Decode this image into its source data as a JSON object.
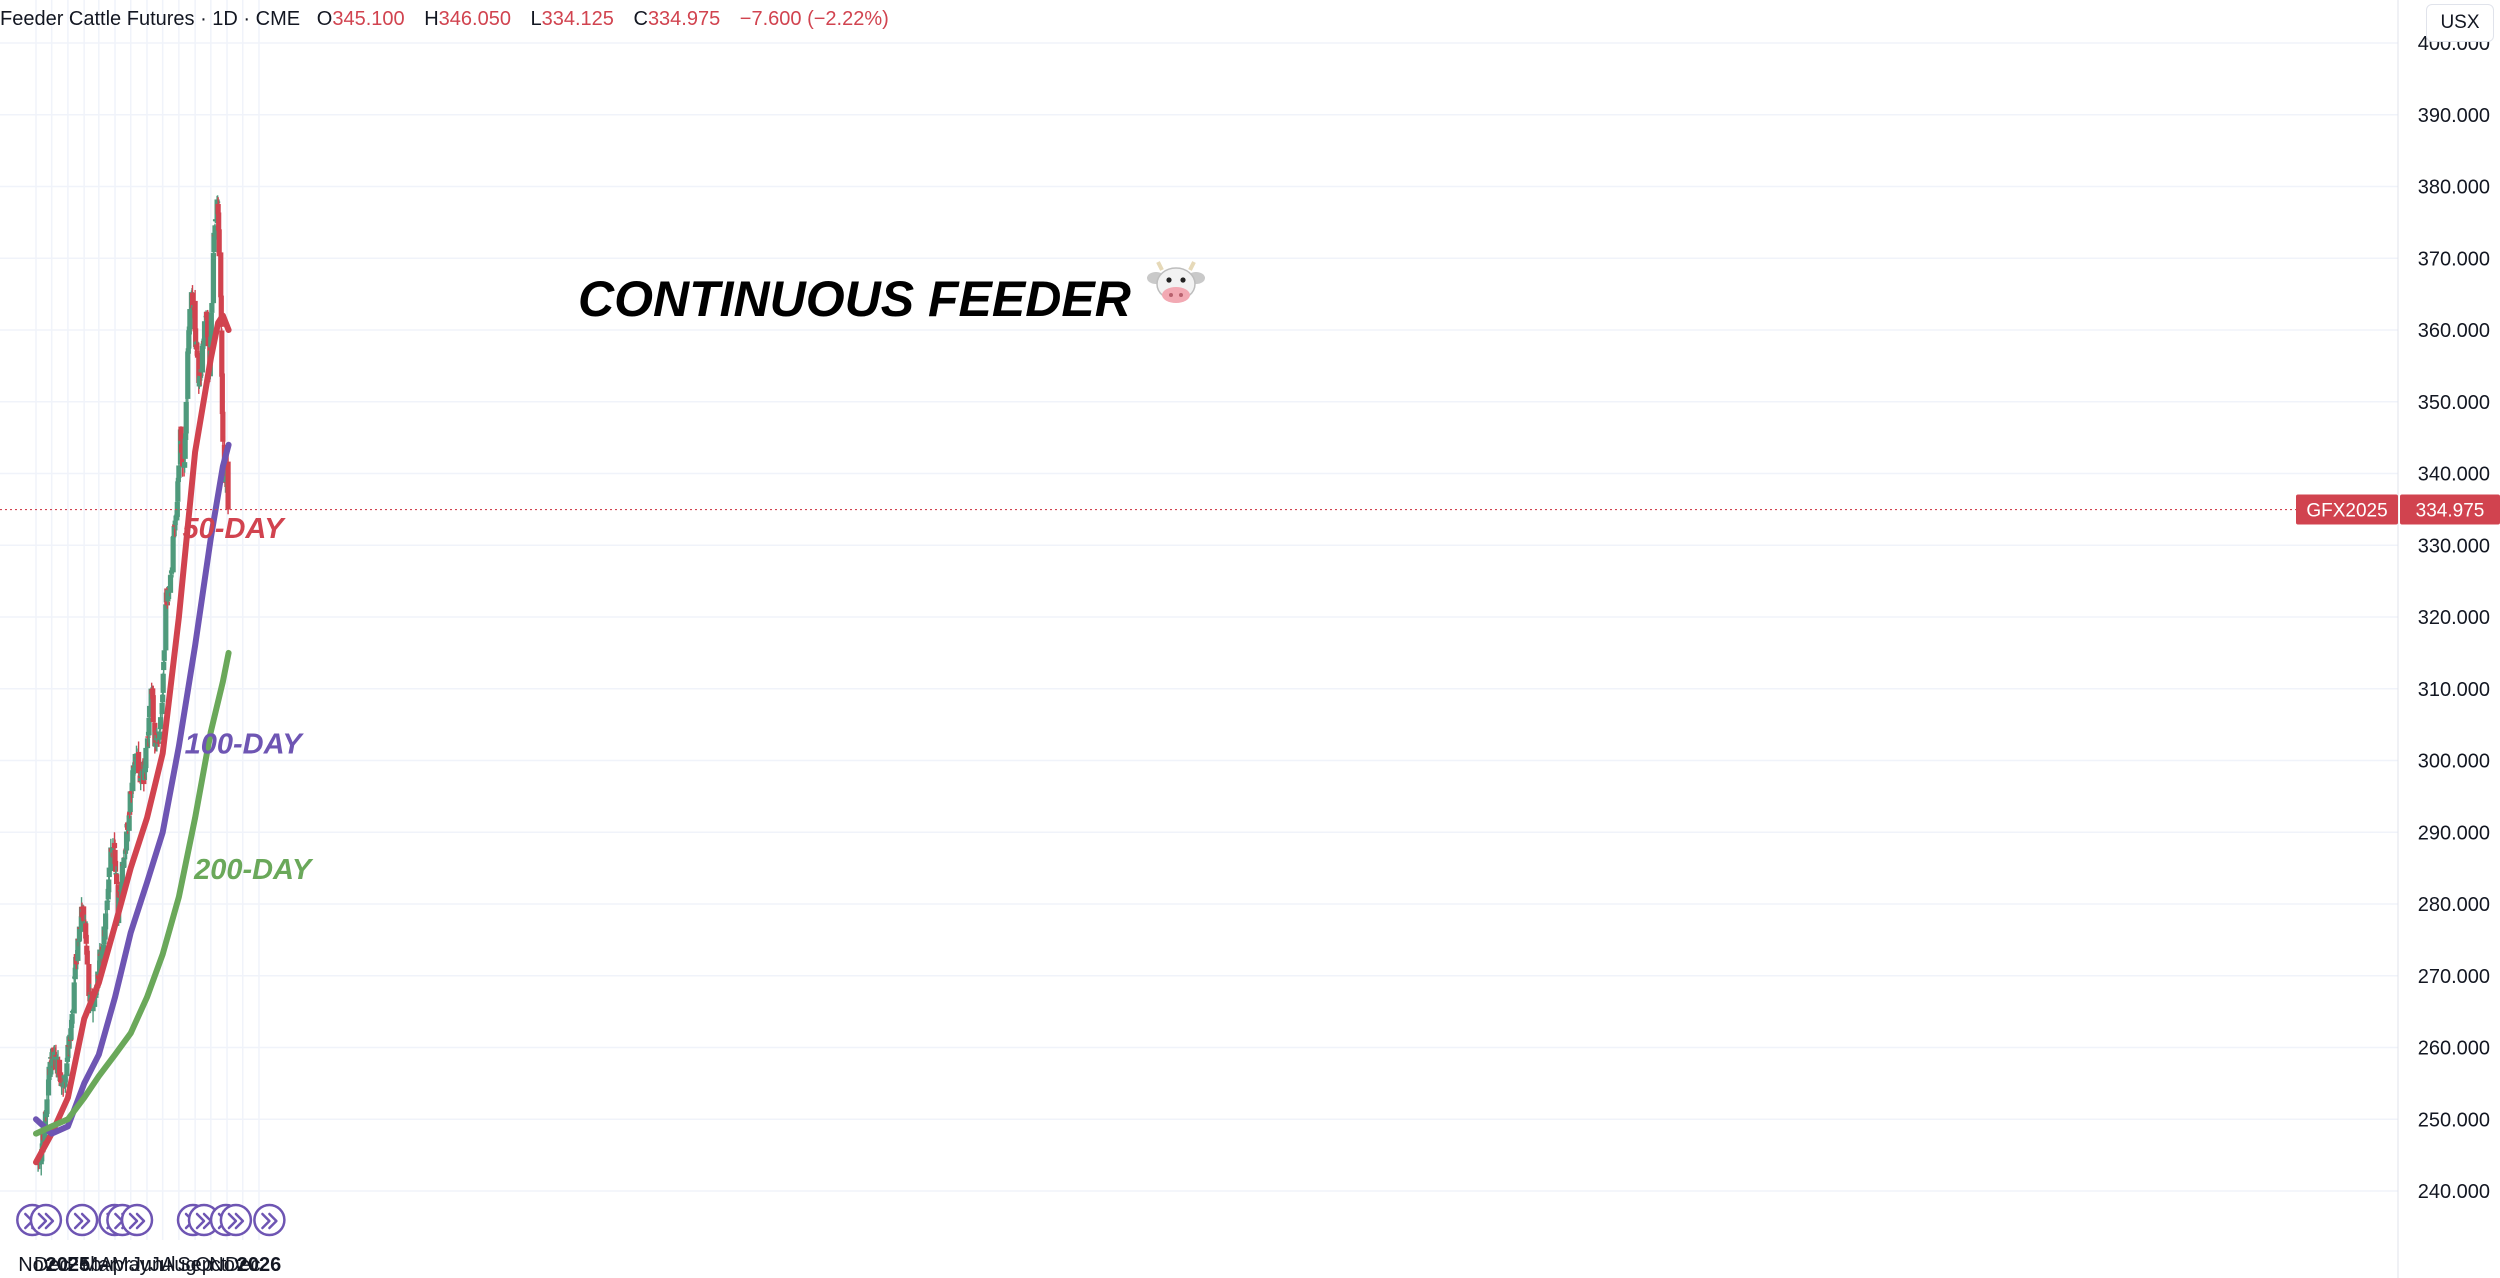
{
  "header": {
    "symbol": "Feeder Cattle Futures · 1D · CME",
    "o_label": "O",
    "o_value": "345.100",
    "h_label": "H",
    "h_value": "346.050",
    "l_label": "L",
    "l_value": "334.125",
    "c_label": "C",
    "c_value": "334.975",
    "change": "−7.600 (−2.22%)"
  },
  "currency": "USX",
  "colors": {
    "up": "#4f9a7c",
    "down": "#d1434f",
    "ma50": "#d1434f",
    "ma100": "#6e55b3",
    "ma200": "#6aa85a",
    "price_line": "#d1434f",
    "event_icon": "#6e55b3"
  },
  "chart_data": {
    "type": "line",
    "title": "CONTINUOUS FEEDER",
    "title_icon": "cow-face-icon",
    "ylim": [
      240,
      400
    ],
    "y_ticks": [
      "240.000",
      "250.000",
      "260.000",
      "270.000",
      "280.000",
      "290.000",
      "300.000",
      "310.000",
      "320.000",
      "330.000",
      "340.000",
      "350.000",
      "360.000",
      "370.000",
      "380.000",
      "390.000",
      "400.000"
    ],
    "x_ticks": [
      {
        "label": "Nov",
        "date": "2024-11-01"
      },
      {
        "label": "Dec",
        "date": "2024-12-01"
      },
      {
        "label": "2025",
        "date": "2025-01-01",
        "bold": true
      },
      {
        "label": "Feb",
        "date": "2025-02-01"
      },
      {
        "label": "Mar",
        "date": "2025-03-01"
      },
      {
        "label": "Apr",
        "date": "2025-04-01"
      },
      {
        "label": "May",
        "date": "2025-05-01"
      },
      {
        "label": "Jun",
        "date": "2025-06-01"
      },
      {
        "label": "Jul",
        "date": "2025-07-01"
      },
      {
        "label": "Aug",
        "date": "2025-08-01"
      },
      {
        "label": "Sep",
        "date": "2025-09-01"
      },
      {
        "label": "Oct",
        "date": "2025-10-01"
      },
      {
        "label": "Nov",
        "date": "2025-11-01"
      },
      {
        "label": "Dec",
        "date": "2025-12-01"
      },
      {
        "label": "2026",
        "date": "2026-01-01",
        "bold": true
      }
    ],
    "price_series": {
      "name": "GFX2025",
      "points": [
        [
          "2024-11-04",
          244
        ],
        [
          "2024-11-12",
          246
        ],
        [
          "2024-11-18",
          249
        ],
        [
          "2024-11-25",
          256
        ],
        [
          "2024-12-02",
          259
        ],
        [
          "2024-12-09",
          258
        ],
        [
          "2024-12-16",
          257
        ],
        [
          "2024-12-23",
          254
        ],
        [
          "2024-12-30",
          258
        ],
        [
          "2025-01-06",
          262
        ],
        [
          "2025-01-13",
          269
        ],
        [
          "2025-01-20",
          275
        ],
        [
          "2025-01-27",
          279
        ],
        [
          "2025-02-03",
          277
        ],
        [
          "2025-02-10",
          267
        ],
        [
          "2025-02-17",
          266
        ],
        [
          "2025-02-24",
          268
        ],
        [
          "2025-03-03",
          273
        ],
        [
          "2025-03-10",
          275
        ],
        [
          "2025-03-17",
          280
        ],
        [
          "2025-03-24",
          288
        ],
        [
          "2025-03-31",
          287
        ],
        [
          "2025-04-07",
          279
        ],
        [
          "2025-04-14",
          284
        ],
        [
          "2025-04-21",
          288
        ],
        [
          "2025-04-28",
          293
        ],
        [
          "2025-05-05",
          298
        ],
        [
          "2025-05-12",
          302
        ],
        [
          "2025-05-19",
          297
        ],
        [
          "2025-05-26",
          298
        ],
        [
          "2025-06-02",
          303
        ],
        [
          "2025-06-09",
          311
        ],
        [
          "2025-06-16",
          303
        ],
        [
          "2025-06-23",
          302
        ],
        [
          "2025-06-30",
          308
        ],
        [
          "2025-07-07",
          322
        ],
        [
          "2025-07-14",
          324
        ],
        [
          "2025-07-21",
          330
        ],
        [
          "2025-07-28",
          335
        ],
        [
          "2025-08-04",
          345
        ],
        [
          "2025-08-11",
          340
        ],
        [
          "2025-08-18",
          356
        ],
        [
          "2025-08-25",
          366
        ],
        [
          "2025-09-01",
          360
        ],
        [
          "2025-09-08",
          352
        ],
        [
          "2025-09-15",
          357
        ],
        [
          "2025-09-22",
          363
        ],
        [
          "2025-09-29",
          355
        ],
        [
          "2025-10-06",
          372
        ],
        [
          "2025-10-13",
          379
        ],
        [
          "2025-10-20",
          365
        ],
        [
          "2025-10-24",
          344
        ],
        [
          "2025-10-28",
          340
        ],
        [
          "2025-10-31",
          341
        ],
        [
          "2025-11-03",
          334.975
        ]
      ]
    },
    "series": [
      {
        "name": "50-DAY",
        "points": [
          [
            "2024-11-01",
            244
          ],
          [
            "2024-12-01",
            248
          ],
          [
            "2025-01-01",
            253
          ],
          [
            "2025-02-01",
            264
          ],
          [
            "2025-03-01",
            269
          ],
          [
            "2025-04-01",
            277
          ],
          [
            "2025-05-01",
            285
          ],
          [
            "2025-06-01",
            292
          ],
          [
            "2025-07-01",
            301
          ],
          [
            "2025-08-01",
            320
          ],
          [
            "2025-09-01",
            343
          ],
          [
            "2025-10-01",
            356
          ],
          [
            "2025-10-15",
            361
          ],
          [
            "2025-10-24",
            362
          ],
          [
            "2025-11-04",
            360
          ]
        ]
      },
      {
        "name": "100-DAY",
        "points": [
          [
            "2024-11-01",
            250
          ],
          [
            "2024-12-01",
            248
          ],
          [
            "2025-01-01",
            249
          ],
          [
            "2025-02-01",
            255
          ],
          [
            "2025-03-01",
            259
          ],
          [
            "2025-04-01",
            267
          ],
          [
            "2025-05-01",
            276
          ],
          [
            "2025-06-01",
            283
          ],
          [
            "2025-07-01",
            290
          ],
          [
            "2025-08-01",
            302
          ],
          [
            "2025-09-01",
            316
          ],
          [
            "2025-10-01",
            331
          ],
          [
            "2025-10-24",
            341
          ],
          [
            "2025-11-04",
            344
          ]
        ]
      },
      {
        "name": "200-DAY",
        "points": [
          [
            "2024-11-01",
            248
          ],
          [
            "2024-12-01",
            249
          ],
          [
            "2025-01-01",
            250
          ],
          [
            "2025-02-01",
            253
          ],
          [
            "2025-03-01",
            256
          ],
          [
            "2025-04-01",
            259
          ],
          [
            "2025-05-01",
            262
          ],
          [
            "2025-06-01",
            267
          ],
          [
            "2025-07-01",
            273
          ],
          [
            "2025-08-01",
            281
          ],
          [
            "2025-09-01",
            292
          ],
          [
            "2025-10-01",
            304
          ],
          [
            "2025-10-24",
            311
          ],
          [
            "2025-11-04",
            315
          ]
        ]
      }
    ],
    "last_price": {
      "label": "GFX2025",
      "value": "334.975",
      "y": 334.975
    },
    "event_markers": [
      "2024-10-25",
      "2024-11-20",
      "2025-01-28",
      "2025-03-31",
      "2025-04-15",
      "2025-05-13",
      "2025-08-28",
      "2025-09-18",
      "2025-10-30",
      "2025-11-18",
      "2026-01-21"
    ]
  }
}
